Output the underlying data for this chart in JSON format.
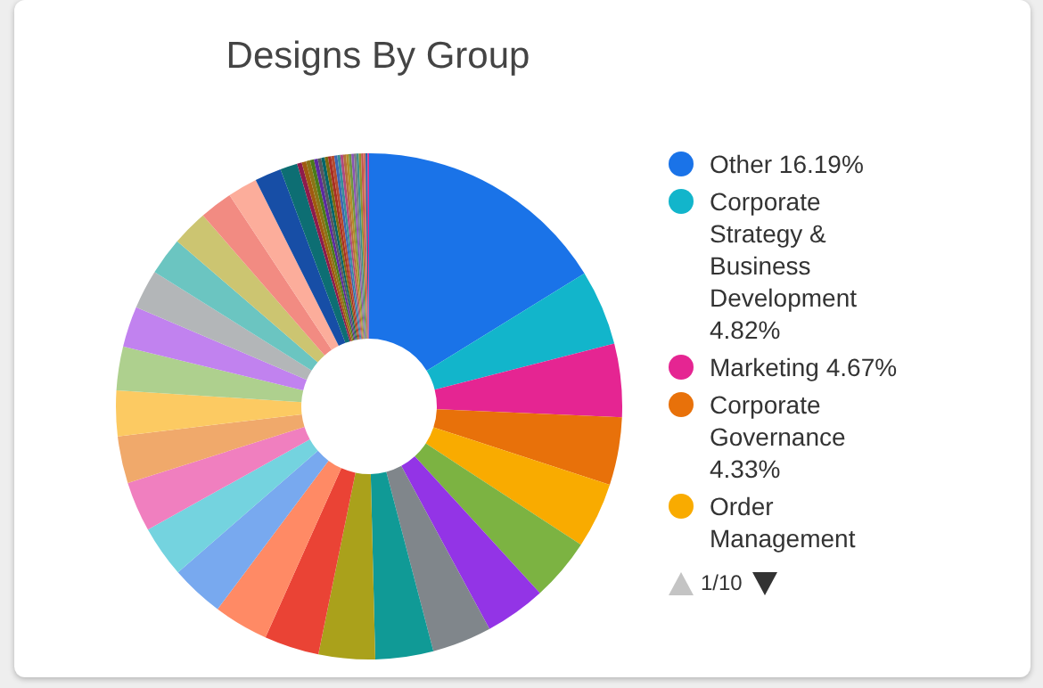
{
  "chart_data": {
    "type": "donut",
    "title": "Designs By Group",
    "legend": "right",
    "annotations": [
      "1/10"
    ],
    "categories": [
      "Other",
      "Corporate Strategy & Business Development",
      "Marketing",
      "Corporate Governance",
      "Order Management",
      null,
      null,
      null,
      null,
      null,
      null,
      null,
      null,
      null,
      null,
      null,
      null,
      null,
      null,
      null,
      null,
      null,
      null,
      null,
      null,
      null,
      null,
      null,
      null,
      null,
      null,
      null,
      null,
      null,
      null,
      null,
      null,
      null,
      null,
      null,
      null,
      null,
      null,
      null,
      null,
      null,
      null,
      null,
      null,
      null
    ],
    "values": [
      16.19,
      4.82,
      4.67,
      4.33,
      4.2,
      4.0,
      3.9,
      3.8,
      3.7,
      3.6,
      3.5,
      3.5,
      3.4,
      3.3,
      3.2,
      3.0,
      2.9,
      2.8,
      2.6,
      2.5,
      2.4,
      2.3,
      2.1,
      1.9,
      1.7,
      1.1,
      0.3,
      0.28,
      0.26,
      0.25,
      0.24,
      0.23,
      0.22,
      0.21,
      0.2,
      0.2,
      0.19,
      0.19,
      0.18,
      0.18,
      0.17,
      0.17,
      0.16,
      0.16,
      0.15,
      0.15,
      0.14,
      0.14,
      0.13,
      0.09
    ],
    "value_labels": [
      "16.19%",
      "4.82%",
      "4.67%",
      "4.33%",
      null,
      null,
      null,
      null,
      null,
      null,
      null,
      null,
      null,
      null,
      null,
      null,
      null,
      null,
      null,
      null,
      null,
      null,
      null,
      null,
      null,
      null,
      null,
      null,
      null,
      null,
      null,
      null,
      null,
      null,
      null,
      null,
      null,
      null,
      null,
      null,
      null,
      null,
      null,
      null,
      null,
      null,
      null,
      null,
      null,
      null
    ],
    "colors": [
      "#1a73e8",
      "#12b5cb",
      "#e52592",
      "#e8710a",
      "#f9ab00",
      "#7cb342",
      "#9334e6",
      "#80868b",
      "#109a96",
      "#aaa11b",
      "#ea4335",
      "#ff8a65",
      "#78a9ef",
      "#74d3df",
      "#f07fbf",
      "#f0a96b",
      "#fcca62",
      "#aed08e",
      "#c182ef",
      "#b3b6b8",
      "#6bc5c1",
      "#ccc571",
      "#f28b82",
      "#fcad9b",
      "#174ea6",
      "#0d6e73",
      "#8e1b4c",
      "#a05a10",
      "#8a7417",
      "#4a7b1a",
      "#5c2aa0",
      "#55595e",
      "#05666a",
      "#7b6a10",
      "#a82e24",
      "#b54b2e",
      "#3d66b2",
      "#378e99",
      "#b04a7f",
      "#b56e3a",
      "#b38c29",
      "#6f9442",
      "#8a55b5",
      "#7a7d80",
      "#3f8e8a",
      "#92902e",
      "#c4544e",
      "#d0715e",
      "#1f5fa8",
      "#e52592"
    ]
  }
}
